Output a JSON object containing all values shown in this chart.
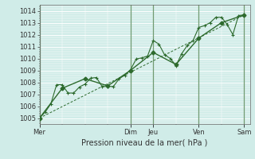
{
  "xlabel": "Pression niveau de la mer( hPa )",
  "bg_color": "#d0ece8",
  "grid_color": "#ffffff",
  "line_color": "#2d6a2d",
  "ylim": [
    1004.5,
    1014.5
  ],
  "yticks": [
    1005,
    1006,
    1007,
    1008,
    1009,
    1010,
    1011,
    1012,
    1013,
    1014
  ],
  "day_labels": [
    "Mer",
    "Dim",
    "Jeu",
    "Ven",
    "Sam"
  ],
  "day_positions": [
    0,
    16,
    20,
    28,
    36
  ],
  "xlim": [
    0,
    37
  ],
  "vline_color": "#5a8a5a",
  "series1_x": [
    0,
    1,
    2,
    3,
    4,
    5,
    6,
    7,
    8,
    9,
    10,
    11,
    12,
    13,
    14,
    15,
    16,
    17,
    18,
    19,
    20,
    21,
    22,
    23,
    24,
    25,
    26,
    27,
    28,
    29,
    30,
    31,
    32,
    33,
    34,
    35,
    36
  ],
  "series1_y": [
    1005.0,
    1005.5,
    1006.2,
    1007.8,
    1007.8,
    1007.1,
    1007.1,
    1007.6,
    1007.85,
    1008.35,
    1008.4,
    1007.65,
    1007.65,
    1007.65,
    1008.3,
    1008.6,
    1009.05,
    1009.95,
    1010.05,
    1010.2,
    1011.5,
    1011.2,
    1010.3,
    1010.0,
    1009.4,
    1010.4,
    1011.1,
    1011.5,
    1012.6,
    1012.75,
    1013.0,
    1013.45,
    1013.45,
    1012.85,
    1012.0,
    1013.6,
    1013.65
  ],
  "series2_x": [
    0,
    4,
    8,
    12,
    16,
    20,
    24,
    28,
    32,
    36
  ],
  "series2_y": [
    1005.0,
    1007.5,
    1008.3,
    1007.7,
    1009.0,
    1010.5,
    1009.5,
    1011.7,
    1013.0,
    1013.65
  ],
  "trend_x": [
    0,
    36
  ],
  "trend_y": [
    1005.0,
    1013.65
  ],
  "xlabel_fontsize": 7,
  "ytick_fontsize": 6,
  "xtick_fontsize": 6
}
